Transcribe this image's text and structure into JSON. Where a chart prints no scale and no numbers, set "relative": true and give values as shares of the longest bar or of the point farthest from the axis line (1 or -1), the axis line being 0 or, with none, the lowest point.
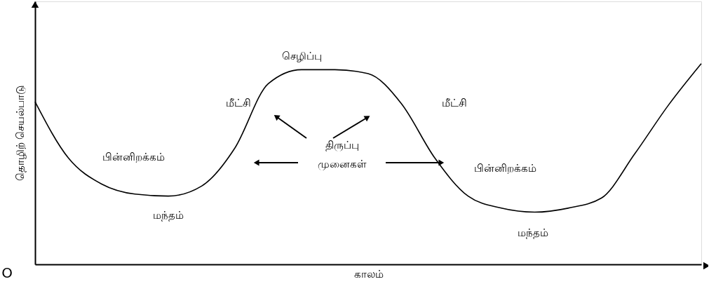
{
  "chart_data": {
    "type": "line",
    "relative": true,
    "color": "#000000",
    "xlabel": "காலம்",
    "ylabel": "தொழிற் செயல்பாடு",
    "categories": [
      null,
      null,
      null,
      null,
      null,
      null,
      null,
      null,
      null,
      null,
      null,
      null,
      null,
      null,
      null,
      null,
      null,
      null,
      null,
      null,
      null
    ],
    "values": [
      0.81,
      0.53,
      0.4,
      0.35,
      0.34,
      0.39,
      0.58,
      0.9,
      0.97,
      0.97,
      0.95,
      0.8,
      0.53,
      0.34,
      0.28,
      0.26,
      0.28,
      0.33,
      0.55,
      0.79,
      1.0
    ],
    "annotations": [
      "செழிப்பு",
      "மீட்சி",
      "மீட்சி",
      "பின்னிறக்கம்",
      "பின்னிறக்கம்",
      "மந்தம்",
      "மந்தம்",
      "திருப்பு முனைகள்",
      "O"
    ]
  }
}
